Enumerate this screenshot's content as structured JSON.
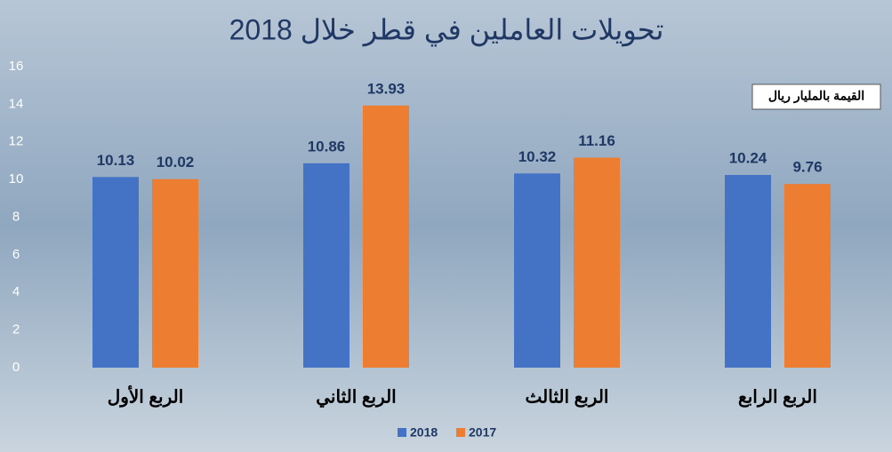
{
  "chart_data": {
    "type": "bar",
    "title": "تحويلات العاملين في قطر خلال 2018",
    "annotation": "القيمة بالمليار ريال",
    "categories": [
      "الربع الأول",
      "الربع الثاني",
      "الربع الثالث",
      "الربع الرابع"
    ],
    "series": [
      {
        "name": "2018",
        "color": "#4472c4",
        "values": [
          10.13,
          10.86,
          10.32,
          10.24
        ]
      },
      {
        "name": "2017",
        "color": "#ed7d31",
        "values": [
          10.02,
          13.93,
          11.16,
          9.76
        ]
      }
    ],
    "ylim": [
      0,
      16
    ],
    "yticks": [
      0,
      2,
      4,
      6,
      8,
      10,
      12,
      14,
      16
    ],
    "grid": false,
    "legend": "bottom"
  }
}
